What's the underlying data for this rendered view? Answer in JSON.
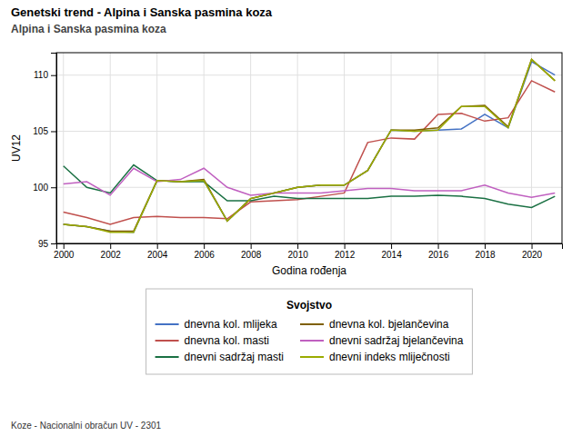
{
  "chart_data": {
    "type": "line",
    "title": "Genetski trend - Alpina i Sanska pasmina koza",
    "subtitle": "Alpina i Sanska pasmina koza",
    "x_label": "Godina rođenja",
    "y_label": "UV12",
    "annotations": [
      "Koze - Nacionalni obračun UV - 2301"
    ],
    "legend_title": "Svojstvo",
    "legend": "bottom",
    "grid": true,
    "x": [
      2000,
      2001,
      2002,
      2003,
      2004,
      2005,
      2006,
      2007,
      2008,
      2009,
      2010,
      2011,
      2012,
      2013,
      2014,
      2015,
      2016,
      2017,
      2018,
      2019,
      2020,
      2021
    ],
    "series": [
      {
        "name": "dnevna kol. mlijeka",
        "color": "#4472c4",
        "values": [
          96.7,
          96.5,
          96.1,
          96.0,
          100.6,
          100.5,
          100.6,
          97.0,
          99.0,
          99.5,
          100.0,
          100.2,
          100.2,
          101.5,
          105.1,
          105.0,
          105.1,
          105.2,
          106.5,
          105.3,
          111.2,
          110.0
        ]
      },
      {
        "name": "dnevna kol. masti",
        "color": "#c0504d",
        "values": [
          97.8,
          97.3,
          96.7,
          97.3,
          97.4,
          97.3,
          97.3,
          97.2,
          98.7,
          98.8,
          98.9,
          99.2,
          99.5,
          104.0,
          104.4,
          104.3,
          106.5,
          106.6,
          105.9,
          106.2,
          109.5,
          108.5
        ]
      },
      {
        "name": "dnevni sadržaj masti",
        "color": "#1a7043",
        "values": [
          101.9,
          100.0,
          99.5,
          102.0,
          100.6,
          100.5,
          100.5,
          98.8,
          98.8,
          99.2,
          99.0,
          99.0,
          99.0,
          99.0,
          99.2,
          99.2,
          99.3,
          99.2,
          99.0,
          98.5,
          98.2,
          99.2
        ]
      },
      {
        "name": "dnevna kol. bjelančevina",
        "color": "#7f6000",
        "values": [
          96.7,
          96.5,
          96.1,
          96.1,
          100.6,
          100.5,
          100.7,
          97.0,
          99.0,
          99.5,
          100.0,
          100.2,
          100.2,
          101.5,
          105.1,
          105.1,
          105.3,
          107.2,
          107.3,
          105.4,
          111.4,
          109.5
        ]
      },
      {
        "name": "dnevni sadržaj bjelančevina",
        "color": "#c060c0",
        "values": [
          100.3,
          100.5,
          99.3,
          101.7,
          100.5,
          100.7,
          101.7,
          100.0,
          99.3,
          99.5,
          99.5,
          99.5,
          99.7,
          99.9,
          99.9,
          99.7,
          99.7,
          99.7,
          100.2,
          99.5,
          99.1,
          99.5
        ]
      },
      {
        "name": "dnevni indeks mliječnosti",
        "color": "#9aab00",
        "values": [
          96.7,
          96.5,
          96.0,
          96.0,
          100.6,
          100.5,
          100.6,
          97.0,
          99.0,
          99.5,
          100.0,
          100.2,
          100.2,
          101.5,
          105.1,
          105.0,
          105.1,
          107.2,
          107.2,
          105.3,
          111.4,
          109.5
        ]
      }
    ],
    "xlim": [
      1999.7,
      2021.3
    ],
    "xticks": [
      2000,
      2002,
      2004,
      2006,
      2008,
      2010,
      2012,
      2014,
      2016,
      2018,
      2020
    ],
    "ylim": [
      95,
      112
    ],
    "yticks": [
      95,
      100,
      105,
      110
    ]
  }
}
